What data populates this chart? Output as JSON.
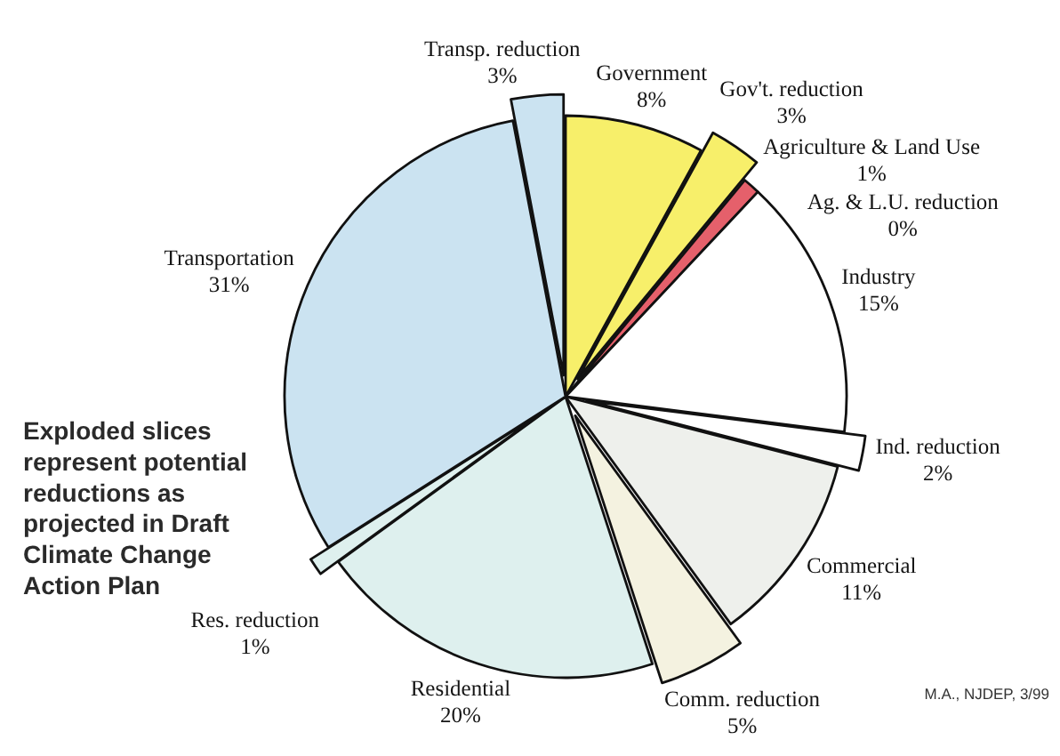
{
  "chart_data": {
    "type": "pie",
    "categories": [
      "Government",
      "Gov't. reduction",
      "Agriculture & Land Use",
      "Ag. & L.U. reduction",
      "Industry",
      "Ind. reduction",
      "Commercial",
      "Comm. reduction",
      "Residential",
      "Res. reduction",
      "Transportation",
      "Transp. reduction"
    ],
    "values": [
      8,
      3,
      1,
      0,
      15,
      2,
      11,
      5,
      20,
      1,
      31,
      3
    ],
    "value_labels": [
      "8%",
      "3%",
      "1%",
      "0%",
      "15%",
      "2%",
      "11%",
      "5%",
      "20%",
      "1%",
      "31%",
      "3%"
    ],
    "colors": [
      "#f7ef6a",
      "#f7ef6a",
      "#e5606b",
      null,
      "#ffffff",
      "#ffffff",
      "#eef0ec",
      "#f4f2e0",
      "#def0ee",
      "#def0ee",
      "#cbe3f1",
      "#cbe3f1"
    ],
    "annotations": [
      "Exploded slices represent potential reductions as projected in Draft Climate Change Action Plan",
      "M.A., NJDEP, 3/99"
    ]
  }
}
